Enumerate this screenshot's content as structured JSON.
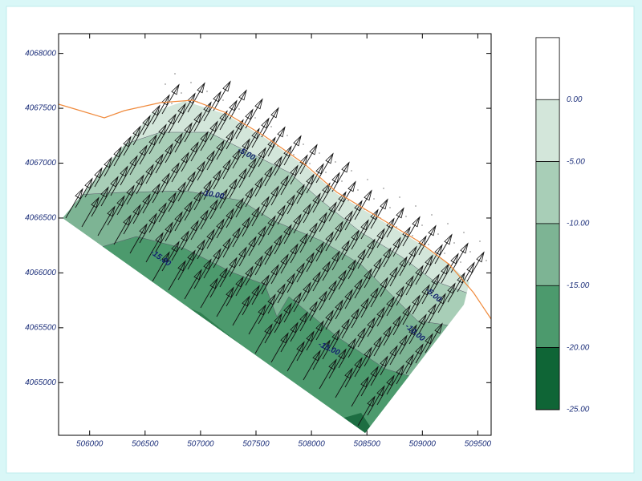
{
  "chart_data": {
    "type": "contour",
    "xlim": [
      505720,
      509620
    ],
    "ylim": [
      4064520,
      4068180
    ],
    "xticks": [
      506000,
      506500,
      507000,
      507500,
      508000,
      508500,
      509000,
      509500
    ],
    "yticks": [
      4065000,
      4065500,
      4066000,
      4066500,
      4067000,
      4067500,
      4068000
    ],
    "coast_color": "#f08a3c",
    "colorbar": {
      "lim": [
        -25,
        5
      ],
      "ticks": [
        {
          "value": 0,
          "label": "0.00"
        },
        {
          "value": -5,
          "label": "-5.00"
        },
        {
          "value": -10,
          "label": "-10.00"
        },
        {
          "value": -15,
          "label": "-15.00"
        },
        {
          "value": -20,
          "label": "-20.00"
        },
        {
          "value": -25,
          "label": "-25.00"
        }
      ],
      "colors": [
        "#ffffff",
        "#d3e6da",
        "#a8ceb7",
        "#7db494",
        "#4c9a6d",
        "#0f6536"
      ]
    },
    "contour_labels": [
      {
        "value": -5,
        "label": "-5.00"
      },
      {
        "value": -10,
        "label": "-10.00"
      },
      {
        "value": -15,
        "label": "-15.00"
      },
      {
        "value": -15,
        "label": "-15.00"
      },
      {
        "value": -10,
        "label": "-10.00"
      },
      {
        "value": -5,
        "label": "-5.00"
      }
    ]
  }
}
